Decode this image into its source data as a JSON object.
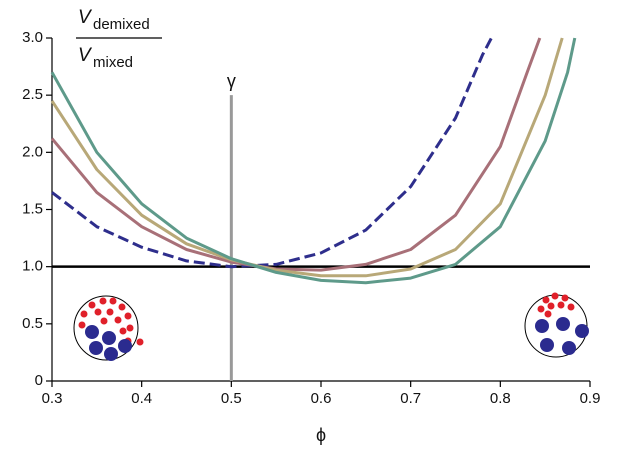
{
  "chart_data": {
    "type": "line",
    "ylabel": {
      "numerator": {
        "symbol": "V",
        "subscript": "demixed"
      },
      "denominator": {
        "symbol": "V",
        "subscript": "mixed"
      }
    },
    "xlabel": "ϕ",
    "xlim": [
      0.3,
      0.9
    ],
    "xticks": [
      0.3,
      0.4,
      0.5,
      0.6,
      0.7,
      0.8,
      0.9
    ],
    "ylim": [
      0,
      3.0
    ],
    "yticks": [
      0,
      0.5,
      {
        "value": 1.0,
        "label": "1.0"
      },
      1.5,
      {
        "value": 2.0,
        "label": "2.0"
      },
      2.5,
      {
        "value": 3.0,
        "label": "3.0"
      }
    ],
    "reference_lines": [
      {
        "axis": "y",
        "value": 1.0,
        "color": "#000000"
      },
      {
        "axis": "x",
        "value": 0.5,
        "ymax": 2.5,
        "color": "#999999",
        "label": "γ"
      }
    ],
    "series": [
      {
        "color": "#2e2e8c",
        "dash": true,
        "x": [
          0.3,
          0.35,
          0.4,
          0.45,
          0.5,
          0.55,
          0.6,
          0.65,
          0.7,
          0.75,
          0.78,
          0.79
        ],
        "values": [
          1.65,
          1.35,
          1.17,
          1.05,
          1.0,
          1.02,
          1.12,
          1.32,
          1.7,
          2.3,
          2.85,
          3.0
        ]
      },
      {
        "color": "#a87078",
        "dash": false,
        "x": [
          0.3,
          0.35,
          0.4,
          0.45,
          0.5,
          0.55,
          0.6,
          0.65,
          0.7,
          0.75,
          0.8,
          0.83,
          0.844
        ],
        "values": [
          2.12,
          1.65,
          1.35,
          1.15,
          1.04,
          0.98,
          0.97,
          1.02,
          1.15,
          1.45,
          2.05,
          2.7,
          3.0
        ]
      },
      {
        "color": "#b8a878",
        "dash": false,
        "x": [
          0.3,
          0.35,
          0.4,
          0.45,
          0.5,
          0.55,
          0.6,
          0.65,
          0.7,
          0.75,
          0.8,
          0.85,
          0.869
        ],
        "values": [
          2.45,
          1.85,
          1.45,
          1.2,
          1.06,
          0.97,
          0.92,
          0.92,
          0.98,
          1.15,
          1.55,
          2.5,
          3.0
        ]
      },
      {
        "color": "#5e9a8a",
        "dash": false,
        "x": [
          0.3,
          0.35,
          0.4,
          0.45,
          0.5,
          0.55,
          0.6,
          0.65,
          0.7,
          0.75,
          0.8,
          0.85,
          0.875,
          0.883
        ],
        "values": [
          2.7,
          2.0,
          1.55,
          1.25,
          1.07,
          0.95,
          0.88,
          0.86,
          0.9,
          1.02,
          1.35,
          2.1,
          2.7,
          3.0
        ]
      }
    ]
  }
}
